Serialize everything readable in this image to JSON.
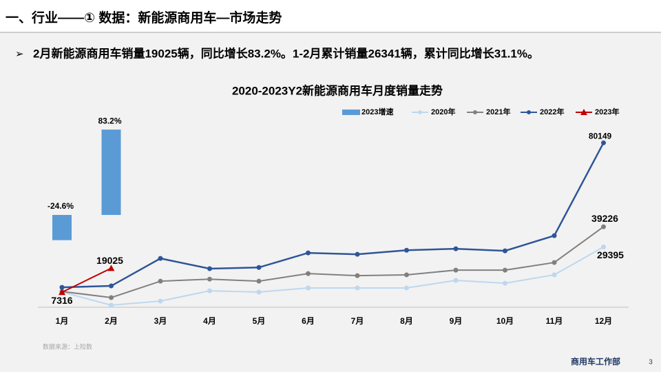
{
  "header": {
    "title": "一、行业——① 数据：新能源商用车—市场走势"
  },
  "bullet": "2月新能源商用车销量19025辆，同比增长83.2%。1-2月累计销量26341辆，累计同比增长31.1%。",
  "chart_data": {
    "type": "line",
    "title": "2020-2023Y2新能源商用车月度销量走势",
    "categories": [
      "1月",
      "2月",
      "3月",
      "4月",
      "5月",
      "6月",
      "7月",
      "8月",
      "9月",
      "10月",
      "11月",
      "12月"
    ],
    "ylim": [
      0,
      90000
    ],
    "y2lim": [
      -90,
      90
    ],
    "grid": false,
    "series": [
      {
        "name": "2023增速",
        "type": "bar",
        "axis": "y2",
        "color": "#5b9bd5",
        "values": [
          -24.6,
          83.2,
          null,
          null,
          null,
          null,
          null,
          null,
          null,
          null,
          null,
          null
        ],
        "value_labels": [
          "-24.6%",
          "83.2%",
          null,
          null,
          null,
          null,
          null,
          null,
          null,
          null,
          null,
          null
        ]
      },
      {
        "name": "2020年",
        "color": "#bdd7ee",
        "marker": "circle",
        "values": [
          7400,
          1000,
          3000,
          8000,
          7400,
          9400,
          9400,
          9400,
          13100,
          11700,
          15800,
          29395
        ]
      },
      {
        "name": "2021年",
        "color": "#808080",
        "marker": "circle",
        "values": [
          7700,
          4700,
          12700,
          13700,
          12700,
          16400,
          15400,
          15800,
          18100,
          18100,
          21800,
          39226
        ]
      },
      {
        "name": "2022年",
        "color": "#2f5597",
        "marker": "circle",
        "values": [
          9700,
          10400,
          23800,
          18800,
          19400,
          26500,
          25800,
          27800,
          28500,
          27500,
          34900,
          80149
        ]
      },
      {
        "name": "2023年",
        "color": "#c00000",
        "marker": "triangle",
        "values": [
          7316,
          19025,
          null,
          null,
          null,
          null,
          null,
          null,
          null,
          null,
          null,
          null
        ]
      }
    ]
  },
  "footer": {
    "source": "数据来源：上险数",
    "department": "商用车工作部",
    "page": "3"
  }
}
